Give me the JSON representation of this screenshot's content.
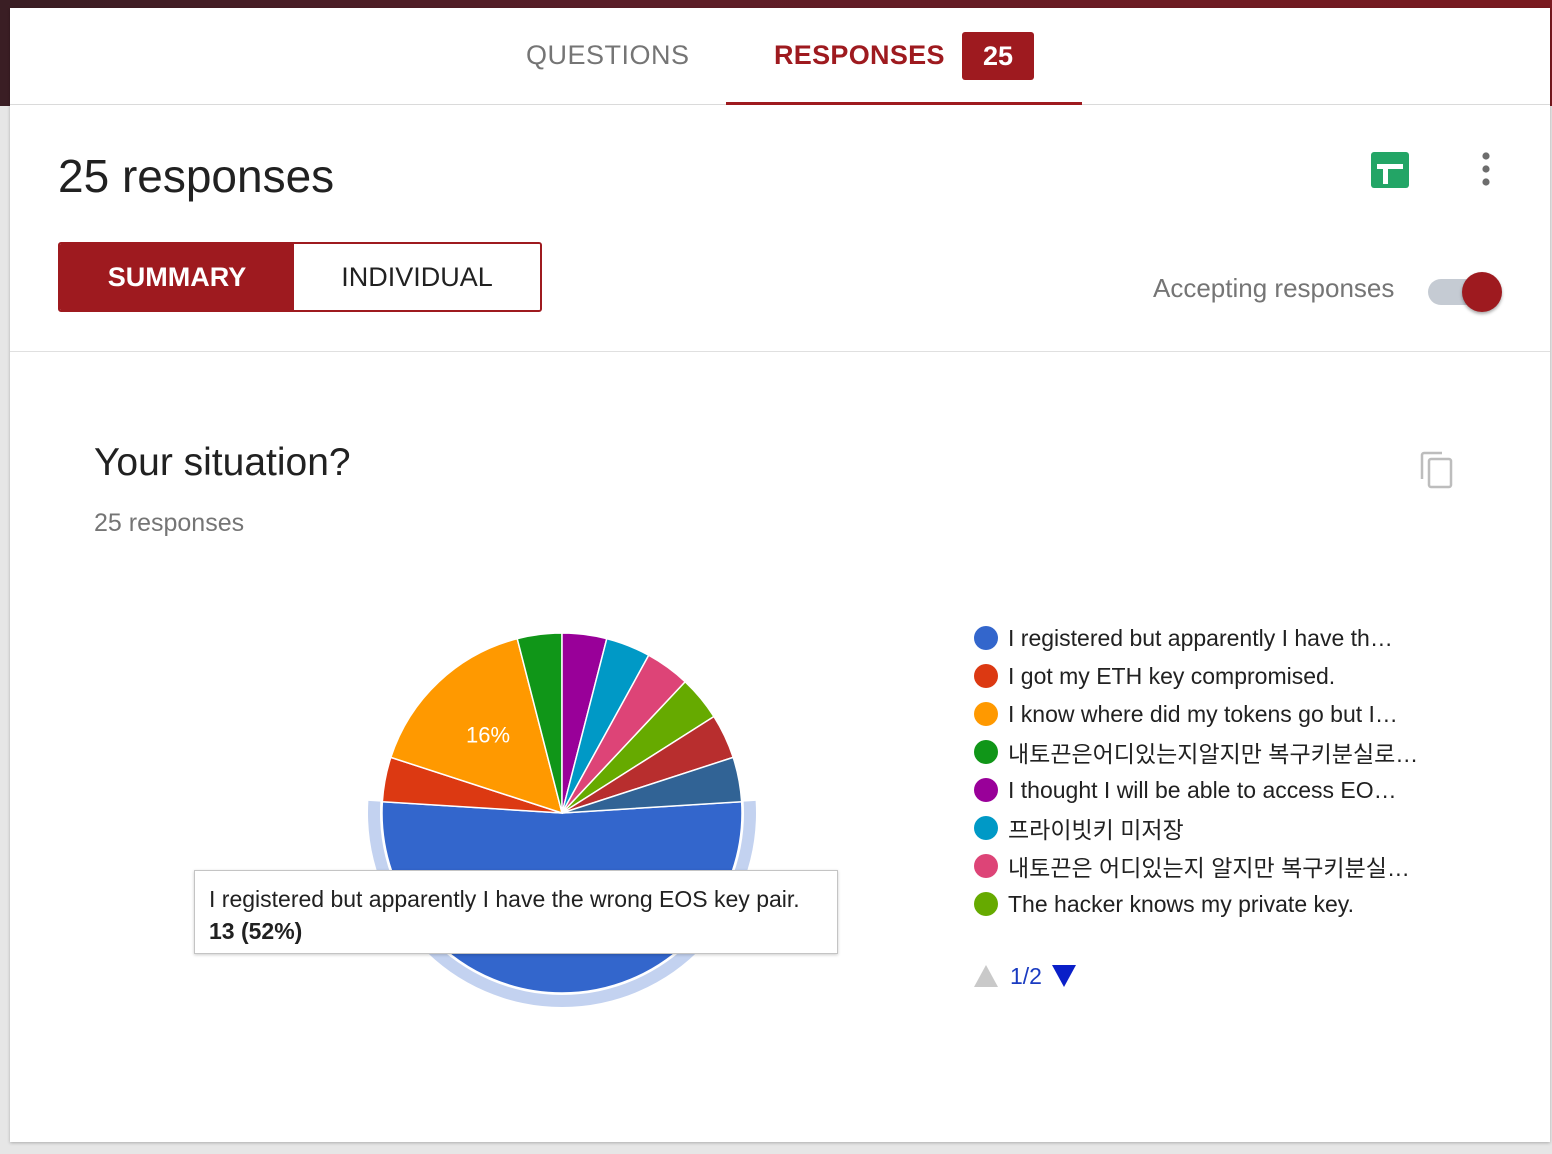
{
  "tabs": {
    "questions_label": "QUESTIONS",
    "responses_label": "RESPONSES",
    "responses_count": "25"
  },
  "header": {
    "title": "25 responses",
    "summary_label": "SUMMARY",
    "individual_label": "INDIVIDUAL",
    "accepting_label": "Accepting responses",
    "accepting_on": true
  },
  "question": {
    "title": "Your situation?",
    "response_count": "25 responses"
  },
  "tooltip": {
    "label": "I registered but apparently I have the wrong EOS key pair.",
    "value": "13 (52%)"
  },
  "legend": {
    "items": [
      "I registered but apparently I have th…",
      "I got my ETH key compromised.",
      "I know where did my tokens go but I…",
      "내토끈은어디있는지알지만 복구키분실로…",
      "I thought I will be able to access EO…",
      "프라이빗키 미저장",
      "내토끈은 어디있는지 알지만 복구키분실…",
      "The hacker knows my private key."
    ],
    "page": "1/2"
  },
  "chart_data": {
    "type": "pie",
    "title": "Your situation?",
    "slice_label_shown": "16%",
    "slices": [
      {
        "label": "I registered but apparently I have the wrong EOS key pair.",
        "value": 13,
        "percent": 52,
        "color": "#3366cc"
      },
      {
        "label": "I got my ETH key compromised.",
        "value": 1,
        "percent": 4,
        "color": "#dc3912"
      },
      {
        "label": "I know where did my tokens go but I…",
        "value": 4,
        "percent": 16,
        "color": "#ff9900"
      },
      {
        "label": "내토끈은어디있는지알지만 복구키분실로…",
        "value": 1,
        "percent": 4,
        "color": "#109618"
      },
      {
        "label": "I thought I will be able to access EO…",
        "value": 1,
        "percent": 4,
        "color": "#990099"
      },
      {
        "label": "프라이빗키 미저장",
        "value": 1,
        "percent": 4,
        "color": "#0099c6"
      },
      {
        "label": "내토끈은 어디있는지 알지만 복구키분실…",
        "value": 1,
        "percent": 4,
        "color": "#dd4477"
      },
      {
        "label": "The hacker knows my private key.",
        "value": 1,
        "percent": 4,
        "color": "#66aa00"
      },
      {
        "label": "",
        "value": 1,
        "percent": 4,
        "color": "#b82e2e"
      },
      {
        "label": "",
        "value": 1,
        "percent": 4,
        "color": "#316395"
      }
    ],
    "highlighted_index": 0
  }
}
